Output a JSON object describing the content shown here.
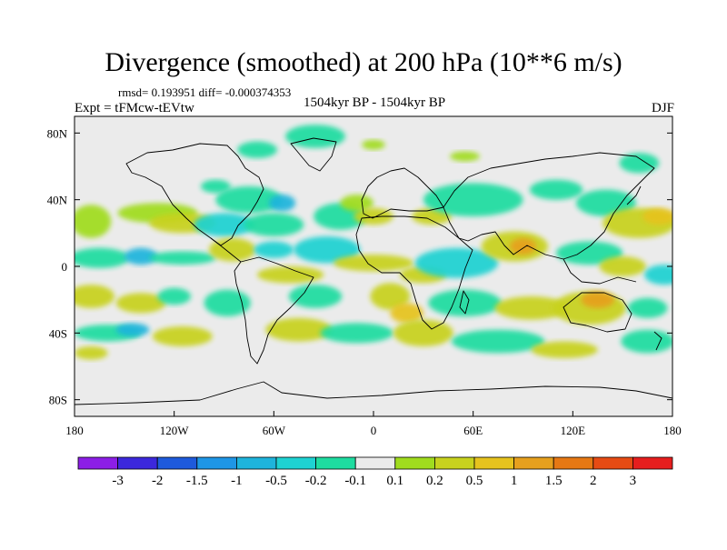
{
  "chart_data": {
    "type": "heatmap",
    "title": "Divergence (smoothed) at 200 hPa (10**6 m/s)",
    "stats": "rmsd= 0.193951 diff= -0.000374353",
    "experiment": "Expt = tFMcw-tEVtw",
    "period": "1504kyr BP - 1504kyr BP",
    "season": "DJF",
    "xlim": [
      -180,
      180
    ],
    "ylim": [
      -90,
      90
    ],
    "x_ticks": [
      {
        "value": -180,
        "label": "180"
      },
      {
        "value": -120,
        "label": "120W"
      },
      {
        "value": -60,
        "label": "60W"
      },
      {
        "value": 0,
        "label": "0"
      },
      {
        "value": 60,
        "label": "60E"
      },
      {
        "value": 120,
        "label": "120E"
      },
      {
        "value": 180,
        "label": "180"
      }
    ],
    "y_ticks": [
      {
        "value": 80,
        "label": "80N"
      },
      {
        "value": 40,
        "label": "40N"
      },
      {
        "value": 0,
        "label": "0"
      },
      {
        "value": -40,
        "label": "40S"
      },
      {
        "value": -80,
        "label": "80S"
      }
    ],
    "colorbar": {
      "colors": [
        "#8c1ee6",
        "#3c28dc",
        "#1e5adc",
        "#1e96e6",
        "#1eb4dc",
        "#1ed2d2",
        "#1edca0",
        "#ebebeb",
        "#a0dc1e",
        "#c8d21e",
        "#e6c31e",
        "#e6a01e",
        "#e67814",
        "#e64b14",
        "#e61e1e"
      ],
      "labels": [
        "-3",
        "-2",
        "-1.5",
        "-1",
        "-0.5",
        "-0.2",
        "-0.1",
        "0.1",
        "0.2",
        "0.5",
        "1",
        "1.5",
        "2",
        "3"
      ]
    },
    "blobs": [
      {
        "lon": -70,
        "lat": 70,
        "rx": 12,
        "ry": 5,
        "level": 6
      },
      {
        "lon": -35,
        "lat": 78,
        "rx": 18,
        "ry": 7,
        "level": 6
      },
      {
        "lon": 0,
        "lat": 73,
        "rx": 7,
        "ry": 3,
        "level": 8
      },
      {
        "lon": 55,
        "lat": 66,
        "rx": 9,
        "ry": 3,
        "level": 8
      },
      {
        "lon": 160,
        "lat": 62,
        "rx": 12,
        "ry": 6,
        "level": 6
      },
      {
        "lon": -95,
        "lat": 48,
        "rx": 9,
        "ry": 4,
        "level": 6
      },
      {
        "lon": -75,
        "lat": 40,
        "rx": 20,
        "ry": 8,
        "level": 6
      },
      {
        "lon": -55,
        "lat": 38,
        "rx": 8,
        "ry": 5,
        "level": 4
      },
      {
        "lon": -170,
        "lat": 27,
        "rx": 12,
        "ry": 10,
        "level": 8
      },
      {
        "lon": -130,
        "lat": 32,
        "rx": 24,
        "ry": 6,
        "level": 8
      },
      {
        "lon": -115,
        "lat": 26,
        "rx": 20,
        "ry": 6,
        "level": 9
      },
      {
        "lon": -90,
        "lat": 25,
        "rx": 18,
        "ry": 7,
        "level": 5
      },
      {
        "lon": -60,
        "lat": 25,
        "rx": 18,
        "ry": 7,
        "level": 6
      },
      {
        "lon": -20,
        "lat": 30,
        "rx": 16,
        "ry": 8,
        "level": 6
      },
      {
        "lon": -10,
        "lat": 38,
        "rx": 10,
        "ry": 5,
        "level": 8
      },
      {
        "lon": 0,
        "lat": 30,
        "rx": 12,
        "ry": 5,
        "level": 9
      },
      {
        "lon": 35,
        "lat": 30,
        "rx": 12,
        "ry": 5,
        "level": 9
      },
      {
        "lon": 60,
        "lat": 40,
        "rx": 30,
        "ry": 10,
        "level": 6
      },
      {
        "lon": 110,
        "lat": 46,
        "rx": 16,
        "ry": 6,
        "level": 6
      },
      {
        "lon": 140,
        "lat": 38,
        "rx": 18,
        "ry": 8,
        "level": 6
      },
      {
        "lon": 160,
        "lat": 26,
        "rx": 22,
        "ry": 9,
        "level": 9
      },
      {
        "lon": 172,
        "lat": 30,
        "rx": 10,
        "ry": 5,
        "level": 10
      },
      {
        "lon": -165,
        "lat": 5,
        "rx": 18,
        "ry": 6,
        "level": 6
      },
      {
        "lon": -140,
        "lat": 6,
        "rx": 10,
        "ry": 5,
        "level": 4
      },
      {
        "lon": -115,
        "lat": 5,
        "rx": 20,
        "ry": 4,
        "level": 6
      },
      {
        "lon": -85,
        "lat": 10,
        "rx": 14,
        "ry": 7,
        "level": 9
      },
      {
        "lon": -60,
        "lat": 10,
        "rx": 12,
        "ry": 5,
        "level": 5
      },
      {
        "lon": -50,
        "lat": -5,
        "rx": 20,
        "ry": 5,
        "level": 9
      },
      {
        "lon": -28,
        "lat": 10,
        "rx": 20,
        "ry": 8,
        "level": 5
      },
      {
        "lon": 0,
        "lat": 2,
        "rx": 24,
        "ry": 5,
        "level": 9
      },
      {
        "lon": 30,
        "lat": -5,
        "rx": 14,
        "ry": 5,
        "level": 9
      },
      {
        "lon": 50,
        "lat": 2,
        "rx": 25,
        "ry": 9,
        "level": 5
      },
      {
        "lon": 85,
        "lat": 12,
        "rx": 20,
        "ry": 9,
        "level": 9
      },
      {
        "lon": 90,
        "lat": 12,
        "rx": 8,
        "ry": 5,
        "level": 11
      },
      {
        "lon": 130,
        "lat": 8,
        "rx": 20,
        "ry": 7,
        "level": 6
      },
      {
        "lon": 150,
        "lat": 0,
        "rx": 14,
        "ry": 6,
        "level": 9
      },
      {
        "lon": 175,
        "lat": -5,
        "rx": 12,
        "ry": 6,
        "level": 5
      },
      {
        "lon": -170,
        "lat": -18,
        "rx": 14,
        "ry": 7,
        "level": 9
      },
      {
        "lon": -140,
        "lat": -22,
        "rx": 15,
        "ry": 6,
        "level": 9
      },
      {
        "lon": -120,
        "lat": -18,
        "rx": 10,
        "ry": 5,
        "level": 6
      },
      {
        "lon": -88,
        "lat": -22,
        "rx": 14,
        "ry": 8,
        "level": 6
      },
      {
        "lon": -35,
        "lat": -18,
        "rx": 16,
        "ry": 7,
        "level": 6
      },
      {
        "lon": 10,
        "lat": -18,
        "rx": 12,
        "ry": 8,
        "level": 9
      },
      {
        "lon": 20,
        "lat": -28,
        "rx": 10,
        "ry": 6,
        "level": 10
      },
      {
        "lon": 55,
        "lat": -22,
        "rx": 22,
        "ry": 8,
        "level": 6
      },
      {
        "lon": 95,
        "lat": -25,
        "rx": 22,
        "ry": 7,
        "level": 9
      },
      {
        "lon": 130,
        "lat": -25,
        "rx": 22,
        "ry": 10,
        "level": 9
      },
      {
        "lon": 135,
        "lat": -20,
        "rx": 10,
        "ry": 5,
        "level": 11
      },
      {
        "lon": 165,
        "lat": -25,
        "rx": 12,
        "ry": 6,
        "level": 6
      },
      {
        "lon": -160,
        "lat": -40,
        "rx": 20,
        "ry": 5,
        "level": 6
      },
      {
        "lon": -145,
        "lat": -38,
        "rx": 10,
        "ry": 4,
        "level": 4
      },
      {
        "lon": -115,
        "lat": -42,
        "rx": 18,
        "ry": 6,
        "level": 9
      },
      {
        "lon": -45,
        "lat": -38,
        "rx": 20,
        "ry": 7,
        "level": 9
      },
      {
        "lon": -10,
        "lat": -40,
        "rx": 22,
        "ry": 6,
        "level": 6
      },
      {
        "lon": 30,
        "lat": -40,
        "rx": 18,
        "ry": 8,
        "level": 9
      },
      {
        "lon": 75,
        "lat": -45,
        "rx": 28,
        "ry": 7,
        "level": 6
      },
      {
        "lon": 115,
        "lat": -50,
        "rx": 20,
        "ry": 5,
        "level": 9
      },
      {
        "lon": 165,
        "lat": -45,
        "rx": 16,
        "ry": 7,
        "level": 6
      },
      {
        "lon": -170,
        "lat": -52,
        "rx": 10,
        "ry": 4,
        "level": 9
      }
    ]
  }
}
